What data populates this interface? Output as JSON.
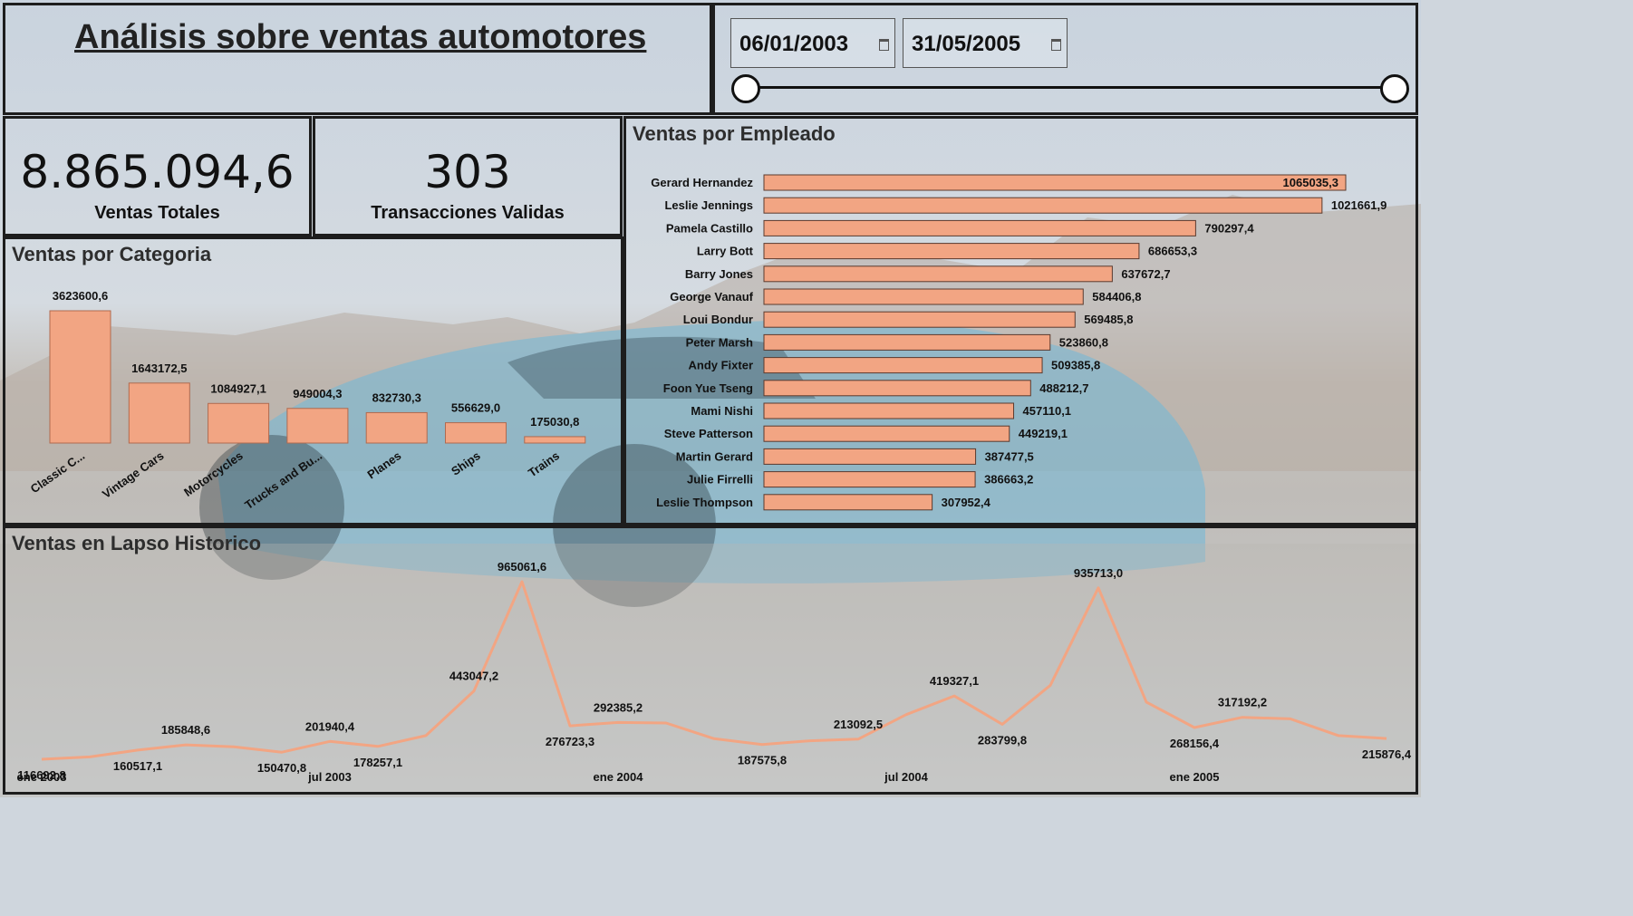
{
  "header": {
    "title": "Análisis sobre ventas automotores"
  },
  "date_filter": {
    "start": "06/01/2003",
    "end": "31/05/2005",
    "slider_start": 0,
    "slider_end": 1
  },
  "kpis": [
    {
      "value": "8.865.094,6",
      "label": "Ventas Totales"
    },
    {
      "value": "303",
      "label": "Transacciones Validas"
    }
  ],
  "colors": {
    "bar": "#f2a583",
    "line": "#f2a583",
    "border": "#1d1d1d"
  },
  "chart_data": [
    {
      "type": "bar",
      "title": "Ventas por Categoria",
      "categories": [
        "Classic C...",
        "Vintage Cars",
        "Motorcycles",
        "Trucks and Bu...",
        "Planes",
        "Ships",
        "Trains"
      ],
      "values": [
        3623600.6,
        1643172.5,
        1084927.1,
        949004.3,
        832730.3,
        556629.0,
        175030.8
      ],
      "value_labels": [
        "3623600,6",
        "1643172,5",
        "1084927,1",
        "949004,3",
        "832730,3",
        "556629,0",
        "175030,8"
      ]
    },
    {
      "type": "bar",
      "orientation": "horizontal",
      "title": "Ventas por Empleado",
      "categories": [
        "Gerard Hernandez",
        "Leslie Jennings",
        "Pamela Castillo",
        "Larry Bott",
        "Barry Jones",
        "George Vanauf",
        "Loui Bondur",
        "Peter Marsh",
        "Andy Fixter",
        "Foon Yue Tseng",
        "Mami Nishi",
        "Steve Patterson",
        "Martin Gerard",
        "Julie Firrelli",
        "Leslie Thompson"
      ],
      "values": [
        1065035.3,
        1021661.9,
        790297.4,
        686653.3,
        637672.7,
        584406.8,
        569485.8,
        523860.8,
        509385.8,
        488212.7,
        457110.1,
        449219.1,
        387477.5,
        386663.2,
        307952.4
      ],
      "value_labels": [
        "1065035,3",
        "1021661,9",
        "790297,4",
        "686653,3",
        "637672,7",
        "584406,8",
        "569485,8",
        "523860,8",
        "509385,8",
        "488212,7",
        "457110,1",
        "449219,1",
        "387477,5",
        "386663,2",
        "307952,4"
      ]
    },
    {
      "type": "line",
      "title": "Ventas en Lapso Historico",
      "x": [
        "2003-01",
        "2003-02",
        "2003-03",
        "2003-04",
        "2003-05",
        "2003-06",
        "2003-07",
        "2003-08",
        "2003-09",
        "2003-10",
        "2003-11",
        "2003-12",
        "2004-01",
        "2004-02",
        "2004-03",
        "2004-04",
        "2004-05",
        "2004-06",
        "2004-07",
        "2004-08",
        "2004-09",
        "2004-10",
        "2004-11",
        "2004-12",
        "2005-01",
        "2005-02",
        "2005-03",
        "2005-04",
        "2005-05"
      ],
      "values": [
        116692.8,
        128000,
        160517.1,
        185848.6,
        176000,
        150470.8,
        201940.4,
        178257.1,
        230000,
        443047.2,
        965061.6,
        276723.3,
        292385.2,
        290000,
        215000,
        187575.8,
        205000,
        213092.5,
        330000,
        419327.1,
        283799.8,
        470000,
        935713.0,
        390000,
        268156.4,
        317192.2,
        310000,
        230000,
        215876.4
      ],
      "point_labels": [
        {
          "i": 0,
          "text": "116692,8",
          "pos": "below"
        },
        {
          "i": 2,
          "text": "160517,1",
          "pos": "below"
        },
        {
          "i": 3,
          "text": "185848,6",
          "pos": "above"
        },
        {
          "i": 5,
          "text": "150470,8",
          "pos": "below"
        },
        {
          "i": 6,
          "text": "201940,4",
          "pos": "above"
        },
        {
          "i": 7,
          "text": "178257,1",
          "pos": "below"
        },
        {
          "i": 9,
          "text": "443047,2",
          "pos": "above"
        },
        {
          "i": 10,
          "text": "965061,6",
          "pos": "above"
        },
        {
          "i": 11,
          "text": "276723,3",
          "pos": "below"
        },
        {
          "i": 12,
          "text": "292385,2",
          "pos": "above"
        },
        {
          "i": 15,
          "text": "187575,8",
          "pos": "below"
        },
        {
          "i": 17,
          "text": "213092,5",
          "pos": "above"
        },
        {
          "i": 19,
          "text": "419327,1",
          "pos": "above"
        },
        {
          "i": 20,
          "text": "283799,8",
          "pos": "below"
        },
        {
          "i": 22,
          "text": "935713,0",
          "pos": "above"
        },
        {
          "i": 24,
          "text": "268156,4",
          "pos": "below"
        },
        {
          "i": 25,
          "text": "317192,2",
          "pos": "above"
        },
        {
          "i": 28,
          "text": "215876,4",
          "pos": "below"
        }
      ],
      "x_ticks": [
        {
          "i": 0,
          "label": "ene 2003"
        },
        {
          "i": 6,
          "label": "jul 2003"
        },
        {
          "i": 12,
          "label": "ene 2004"
        },
        {
          "i": 18,
          "label": "jul 2004"
        },
        {
          "i": 24,
          "label": "ene 2005"
        }
      ]
    }
  ]
}
